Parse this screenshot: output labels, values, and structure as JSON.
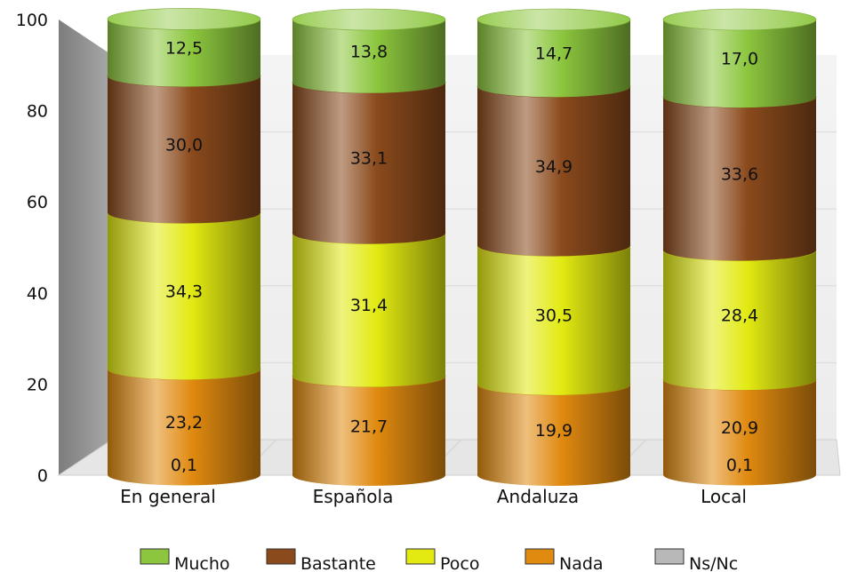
{
  "chart_data": {
    "type": "bar",
    "stacked": true,
    "categories": [
      "En general",
      "Española",
      "Andaluza",
      "Local"
    ],
    "series": [
      {
        "name": "Ns/Nc",
        "values": [
          0.1,
          0,
          0,
          0.1
        ],
        "labels": [
          "0,1",
          "",
          "",
          "0,1"
        ],
        "color": "#b8b8b8"
      },
      {
        "name": "Nada",
        "values": [
          23.2,
          21.7,
          19.9,
          20.9
        ],
        "labels": [
          "23,2",
          "21,7",
          "19,9",
          "20,9"
        ],
        "color": "#e08a10"
      },
      {
        "name": "Poco",
        "values": [
          34.3,
          31.4,
          30.5,
          28.4
        ],
        "labels": [
          "34,3",
          "31,4",
          "30,5",
          "28,4"
        ],
        "color": "#e2ea12"
      },
      {
        "name": "Bastante",
        "values": [
          30.0,
          33.1,
          34.9,
          33.6
        ],
        "labels": [
          "30,0",
          "33,1",
          "34,9",
          "33,6"
        ],
        "color": "#8a4a1c"
      },
      {
        "name": "Mucho",
        "values": [
          12.5,
          13.8,
          14.7,
          17.0
        ],
        "labels": [
          "12,5",
          "13,8",
          "14,7",
          "17,0"
        ],
        "color": "#8cc63e"
      }
    ],
    "legend_order": [
      "Mucho",
      "Bastante",
      "Poco",
      "Nada",
      "Ns/Nc"
    ],
    "legend_placement": "bottom",
    "ylim": [
      0,
      100
    ],
    "yticks": [
      "0",
      "20",
      "40",
      "60",
      "80",
      "100"
    ],
    "grid": true,
    "style": "3d-cylinder"
  }
}
